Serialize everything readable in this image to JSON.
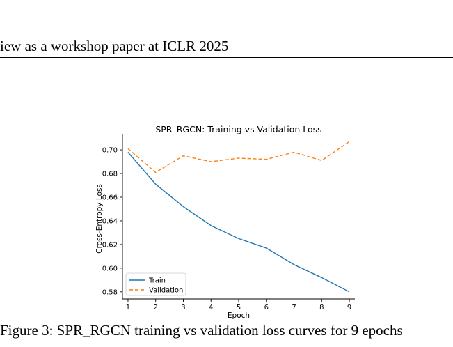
{
  "header": {
    "text": "iew as a workshop paper at ICLR 2025"
  },
  "caption": {
    "text": "Figure 3: SPR_RGCN training vs validation loss curves for 9 epochs"
  },
  "chart_data": {
    "type": "line",
    "title": "SPR_RGCN: Training vs Validation Loss",
    "xlabel": "Epoch",
    "ylabel": "Cross-Entropy Loss",
    "x": [
      1,
      2,
      3,
      4,
      5,
      6,
      7,
      8,
      9
    ],
    "xlim": [
      0.8,
      9.2
    ],
    "ylim": [
      0.574,
      0.713
    ],
    "xticks": [
      1,
      2,
      3,
      4,
      5,
      6,
      7,
      8,
      9
    ],
    "yticks": [
      0.58,
      0.6,
      0.62,
      0.64,
      0.66,
      0.68,
      0.7
    ],
    "ytick_labels": [
      "0.58",
      "0.60",
      "0.62",
      "0.64",
      "0.66",
      "0.68",
      "0.70"
    ],
    "grid": false,
    "legend_position": "lower-left",
    "series": [
      {
        "name": "Train",
        "color": "#1f77b4",
        "style": "solid",
        "values": [
          0.698,
          0.671,
          0.652,
          0.636,
          0.625,
          0.617,
          0.603,
          0.592,
          0.58
        ]
      },
      {
        "name": "Validation",
        "color": "#ff7f0e",
        "style": "dashed",
        "values": [
          0.701,
          0.681,
          0.695,
          0.69,
          0.693,
          0.692,
          0.698,
          0.691,
          0.707
        ]
      }
    ]
  }
}
